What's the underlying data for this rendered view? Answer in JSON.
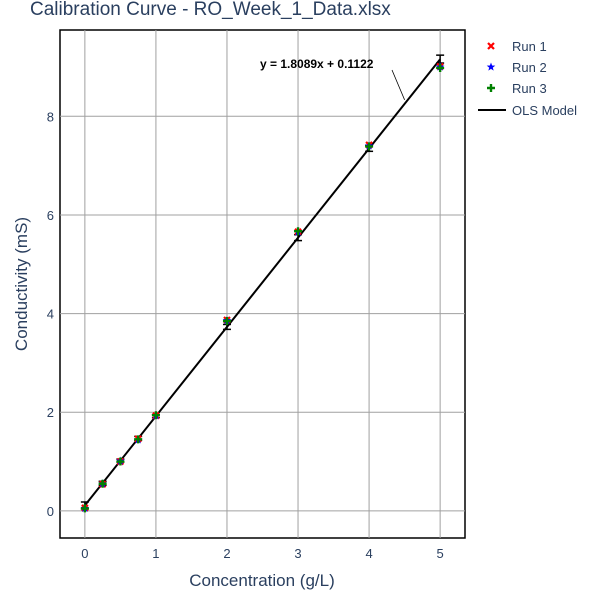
{
  "chart_data": {
    "type": "scatter",
    "title": "Calibration Curve - RO_Week_1_Data.xlsx",
    "xlabel": "Concentration (g/L)",
    "ylabel": "Conductivity (mS)",
    "xlim": [
      -0.35,
      5.35
    ],
    "ylim": [
      -0.55,
      9.75
    ],
    "x_ticks": [
      0,
      1,
      2,
      3,
      4,
      5
    ],
    "y_ticks": [
      0,
      2,
      4,
      6,
      8
    ],
    "grid": true,
    "legend_position": "top-right",
    "series": [
      {
        "name": "Run 1",
        "marker": "x",
        "color": "#ff0000",
        "x": [
          0,
          0.25,
          0.5,
          0.75,
          1,
          2,
          3,
          4,
          5
        ],
        "y": [
          0.06,
          0.54,
          1.0,
          1.46,
          1.93,
          3.87,
          5.66,
          7.42,
          9.01
        ]
      },
      {
        "name": "Run 2",
        "marker": "star",
        "color": "#0000ff",
        "x": [
          0,
          0.25,
          0.5,
          0.75,
          1,
          2,
          3,
          4,
          5
        ],
        "y": [
          0.05,
          0.55,
          1.01,
          1.44,
          1.93,
          3.86,
          5.65,
          7.4,
          9.0
        ]
      },
      {
        "name": "Run 3",
        "marker": "cross",
        "color": "#008000",
        "x": [
          0,
          0.25,
          0.5,
          0.75,
          1,
          2,
          3,
          4,
          5
        ],
        "y": [
          0.05,
          0.55,
          1.0,
          1.45,
          1.94,
          3.85,
          5.67,
          7.39,
          8.98
        ]
      }
    ],
    "model": {
      "name": "OLS Model",
      "color": "#000000",
      "slope": 1.8089,
      "intercept": 0.1122,
      "x_range": [
        0,
        5
      ],
      "equation_label": "y = 1.8089x + 0.1122",
      "label_arrow_x": 4.5
    },
    "error_bars": {
      "x": [
        0,
        0.25,
        0.5,
        0.75,
        1,
        2,
        3,
        4,
        5
      ],
      "y": [
        0.11,
        0.56,
        1.02,
        1.47,
        1.92,
        3.73,
        5.54,
        7.35,
        9.16
      ],
      "error": [
        0.07,
        0.04,
        0.03,
        0.04,
        0.03,
        0.05,
        0.06,
        0.06,
        0.08
      ]
    }
  }
}
